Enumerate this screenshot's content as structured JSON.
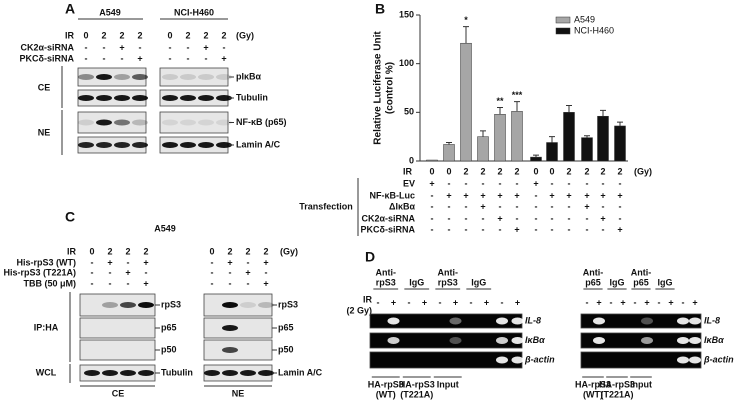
{
  "panels": {
    "A": {
      "label": "A",
      "groups": [
        "A549",
        "NCI-H460"
      ],
      "unit": "(Gy)",
      "rows": [
        {
          "label": "IR",
          "cells": [
            "0",
            "2",
            "2",
            "2",
            "0",
            "2",
            "2",
            "2"
          ]
        },
        {
          "label": "CK2α-siRNA",
          "cells": [
            "-",
            "-",
            "+",
            "-",
            "-",
            "-",
            "+",
            "-"
          ]
        },
        {
          "label": "PKCδ-siRNA",
          "cells": [
            "-",
            "-",
            "-",
            "+",
            "-",
            "-",
            "-",
            "+"
          ]
        }
      ],
      "fractions": [
        "CE",
        "NE"
      ],
      "bands": [
        "pIκBα",
        "Tubulin",
        "NF-κB (p65)",
        "Lamin A/C"
      ]
    },
    "C": {
      "label": "C",
      "group": "A549",
      "unit": "(Gy)",
      "rows": [
        {
          "label": "IR",
          "cells": [
            "0",
            "2",
            "2",
            "2",
            "0",
            "2",
            "2",
            "2"
          ]
        },
        {
          "label": "His-rpS3 (WT)",
          "cells": [
            "-",
            "+",
            "-",
            "+",
            "-",
            "+",
            "-",
            "+"
          ]
        },
        {
          "label": "His-rpS3 (T221A)",
          "cells": [
            "-",
            "-",
            "+",
            "-",
            "-",
            "-",
            "+",
            "-"
          ]
        },
        {
          "label": "TBB (50 μM)",
          "cells": [
            "-",
            "-",
            "-",
            "+",
            "-",
            "-",
            "-",
            "+"
          ]
        }
      ],
      "sections": [
        "IP:HA",
        "WCL"
      ],
      "bands_ce": [
        "rpS3",
        "p65",
        "p50",
        "Tubulin"
      ],
      "bands_ne": [
        "rpS3",
        "p65",
        "p50",
        "Lamin A/C"
      ],
      "fractions": [
        "CE",
        "NE"
      ]
    },
    "D": {
      "label": "D",
      "ir_label": "IR",
      "ir_unit": "(2 Gy)",
      "genes": [
        "IL-8",
        "IκBα",
        "β-actin"
      ],
      "left": {
        "headers": [
          [
            "Anti-",
            "rpS3"
          ],
          [
            "IgG"
          ],
          [
            "Anti-",
            "rpS3"
          ],
          [
            "IgG"
          ]
        ],
        "signs": [
          "-",
          "+",
          "-",
          "+",
          "-",
          "+",
          "-",
          "+",
          "-",
          "+"
        ],
        "groups": [
          [
            "HA-rpS3",
            "(WT)"
          ],
          [
            "HA-rpS3",
            "(T221A)"
          ],
          [
            "Input"
          ]
        ]
      },
      "right": {
        "headers": [
          [
            "Anti-",
            "p65"
          ],
          [
            "IgG"
          ],
          [
            "Anti-",
            "p65"
          ],
          [
            "IgG"
          ]
        ],
        "signs": [
          "-",
          "+",
          "-",
          "+",
          "-",
          "+",
          "-",
          "+",
          "-",
          "+"
        ],
        "groups": [
          [
            "HA-rpS3",
            "(WT)"
          ],
          [
            "HA-rpS3",
            "(T221A)"
          ],
          [
            "Input"
          ]
        ]
      }
    }
  },
  "chart_data": {
    "type": "bar",
    "label": "B",
    "ylabel": [
      "Relative Luciferase Unit",
      "(control %)"
    ],
    "x_label": "IR",
    "x_unit": "(Gy)",
    "categories": [
      "0",
      "0",
      "2",
      "2",
      "2",
      "2",
      "0",
      "0",
      "2",
      "2",
      "2",
      "2"
    ],
    "ylim": [
      0,
      150
    ],
    "yticks": [
      0,
      50,
      100,
      150
    ],
    "legend": "upper right",
    "series": [
      {
        "name": "A549",
        "color": "#a6a6a6",
        "values": [
          1,
          17,
          121,
          25,
          48,
          51,
          null,
          null,
          null,
          null,
          null,
          null
        ],
        "errors": [
          0,
          2,
          17,
          6,
          7,
          10,
          null,
          null,
          null,
          null,
          null,
          null
        ]
      },
      {
        "name": "NCI-H460",
        "color": "#111111",
        "values": [
          null,
          null,
          null,
          null,
          null,
          null,
          4,
          19,
          50,
          24,
          46,
          36
        ],
        "errors": [
          null,
          null,
          null,
          null,
          null,
          null,
          2,
          6,
          7,
          2,
          6,
          4
        ]
      }
    ],
    "annotations": [
      {
        "text": "*"
      },
      {
        "text": "**"
      },
      {
        "text": "***"
      }
    ],
    "table": {
      "title": "Transfection",
      "rows": [
        {
          "label": "EV",
          "cells": [
            "+",
            "-",
            "-",
            "-",
            "-",
            "-",
            "+",
            "-",
            "-",
            "-",
            "-",
            "-"
          ]
        },
        {
          "label": "NF-κB-Luc",
          "cells": [
            "-",
            "+",
            "+",
            "+",
            "+",
            "+",
            "-",
            "+",
            "+",
            "+",
            "+",
            "+"
          ]
        },
        {
          "label": "ΔIκBα",
          "cells": [
            "-",
            "-",
            "-",
            "+",
            "-",
            "-",
            "-",
            "-",
            "-",
            "+",
            "-",
            "-"
          ]
        },
        {
          "label": "CK2α-siRNA",
          "cells": [
            "-",
            "-",
            "-",
            "-",
            "+",
            "-",
            "-",
            "-",
            "-",
            "-",
            "+",
            "-"
          ]
        },
        {
          "label": "PKCδ-siRNA",
          "cells": [
            "-",
            "-",
            "-",
            "-",
            "-",
            "+",
            "-",
            "-",
            "-",
            "-",
            "-",
            "+"
          ]
        }
      ]
    }
  }
}
